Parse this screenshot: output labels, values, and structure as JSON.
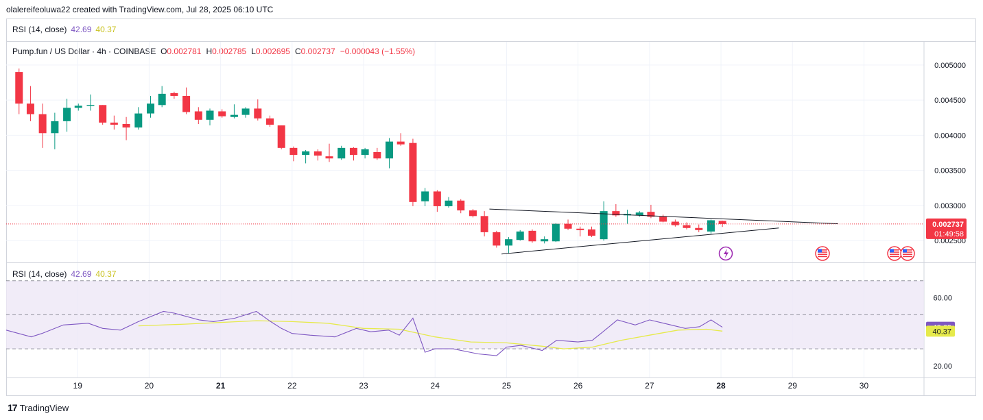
{
  "caption": "olalereifeoluwa22 created with TradingView.com, Jul 28, 2025 06:10 UTC",
  "top_legend": {
    "name": "RSI (14, close)",
    "v1": "42.69",
    "v2": "40.37"
  },
  "symbol_line": {
    "title": "Pump.fun / US Dollar · 4h · COINBASE",
    "o_label": "O",
    "o": "0.002781",
    "h_label": "H",
    "h": "0.002785",
    "l_label": "L",
    "l": "0.002695",
    "c_label": "C",
    "c": "0.002737",
    "change": "−0.000043 (−1.55%)"
  },
  "rsi_legend": {
    "name": "RSI (14, close)",
    "v1": "42.69",
    "v2": "40.37"
  },
  "price_axis": {
    "ticks": [
      "0.005000",
      "0.004500",
      "0.004000",
      "0.003500",
      "0.003000",
      "0.002500"
    ],
    "last_price": "0.002737",
    "countdown": "01:49:58"
  },
  "rsi_axis": {
    "ticks": [
      "60.00",
      "20.00"
    ],
    "rsi_value": "42.69",
    "ma_value": "40.37"
  },
  "time_axis": [
    "19",
    "20",
    "21",
    "22",
    "23",
    "24",
    "25",
    "26",
    "27",
    "28",
    "29",
    "30"
  ],
  "brand": "TradingView",
  "colors": {
    "up": "#089981",
    "down": "#f23645",
    "rsi": "#7e57c2",
    "rsi_ma": "#e6ea4b",
    "band": "#ede7f6"
  },
  "icons": [
    "lightning-event-icon",
    "us-flag-event-icon",
    "us-flag-event-icon",
    "us-flag-event-icon"
  ],
  "chart_data": [
    {
      "type": "candlestick",
      "x_unit": "day (Jul 2025)",
      "timeframe": "4h",
      "candles": [
        {
          "x": 18.18,
          "o": 0.0049,
          "h": 0.00495,
          "l": 0.0043,
          "c": 0.00445
        },
        {
          "x": 18.34,
          "o": 0.00445,
          "h": 0.0047,
          "l": 0.0042,
          "c": 0.0043
        },
        {
          "x": 18.51,
          "o": 0.0043,
          "h": 0.00445,
          "l": 0.00382,
          "c": 0.00403
        },
        {
          "x": 18.68,
          "o": 0.00403,
          "h": 0.00432,
          "l": 0.0038,
          "c": 0.0042
        },
        {
          "x": 18.85,
          "o": 0.0042,
          "h": 0.00452,
          "l": 0.00405,
          "c": 0.00439
        },
        {
          "x": 19.01,
          "o": 0.00439,
          "h": 0.00445,
          "l": 0.00435,
          "c": 0.00442
        },
        {
          "x": 19.18,
          "o": 0.00442,
          "h": 0.00458,
          "l": 0.00435,
          "c": 0.00443
        },
        {
          "x": 19.35,
          "o": 0.00443,
          "h": 0.00443,
          "l": 0.00415,
          "c": 0.00418
        },
        {
          "x": 19.51,
          "o": 0.00418,
          "h": 0.00428,
          "l": 0.00408,
          "c": 0.00415
        },
        {
          "x": 19.68,
          "o": 0.00416,
          "h": 0.00426,
          "l": 0.00393,
          "c": 0.00411
        },
        {
          "x": 19.85,
          "o": 0.00411,
          "h": 0.0044,
          "l": 0.00408,
          "c": 0.00431
        },
        {
          "x": 20.02,
          "o": 0.00431,
          "h": 0.00456,
          "l": 0.00425,
          "c": 0.00445
        },
        {
          "x": 20.18,
          "o": 0.00443,
          "h": 0.0047,
          "l": 0.0044,
          "c": 0.00459
        },
        {
          "x": 20.35,
          "o": 0.0046,
          "h": 0.00462,
          "l": 0.00452,
          "c": 0.00456
        },
        {
          "x": 20.52,
          "o": 0.00456,
          "h": 0.00468,
          "l": 0.0043,
          "c": 0.00433
        },
        {
          "x": 20.69,
          "o": 0.00434,
          "h": 0.0044,
          "l": 0.00416,
          "c": 0.00422
        },
        {
          "x": 20.85,
          "o": 0.00422,
          "h": 0.00438,
          "l": 0.00414,
          "c": 0.00435
        },
        {
          "x": 21.02,
          "o": 0.00434,
          "h": 0.00437,
          "l": 0.00425,
          "c": 0.00427
        },
        {
          "x": 21.19,
          "o": 0.00426,
          "h": 0.00444,
          "l": 0.00424,
          "c": 0.00429
        },
        {
          "x": 21.35,
          "o": 0.00429,
          "h": 0.0044,
          "l": 0.00425,
          "c": 0.00438
        },
        {
          "x": 21.52,
          "o": 0.00438,
          "h": 0.00451,
          "l": 0.00421,
          "c": 0.00424
        },
        {
          "x": 21.69,
          "o": 0.00424,
          "h": 0.00428,
          "l": 0.00412,
          "c": 0.00415
        },
        {
          "x": 21.85,
          "o": 0.00414,
          "h": 0.00414,
          "l": 0.0038,
          "c": 0.00382
        },
        {
          "x": 22.02,
          "o": 0.00382,
          "h": 0.00384,
          "l": 0.00363,
          "c": 0.00372
        },
        {
          "x": 22.19,
          "o": 0.00372,
          "h": 0.00379,
          "l": 0.0036,
          "c": 0.00377
        },
        {
          "x": 22.36,
          "o": 0.00377,
          "h": 0.0038,
          "l": 0.00364,
          "c": 0.00371
        },
        {
          "x": 22.52,
          "o": 0.0037,
          "h": 0.00388,
          "l": 0.00362,
          "c": 0.00367
        },
        {
          "x": 22.69,
          "o": 0.00367,
          "h": 0.00385,
          "l": 0.00365,
          "c": 0.00382
        },
        {
          "x": 22.86,
          "o": 0.00382,
          "h": 0.00383,
          "l": 0.00364,
          "c": 0.00372
        },
        {
          "x": 23.02,
          "o": 0.00372,
          "h": 0.00382,
          "l": 0.00367,
          "c": 0.0038
        },
        {
          "x": 23.19,
          "o": 0.00376,
          "h": 0.00382,
          "l": 0.00365,
          "c": 0.00367
        },
        {
          "x": 23.36,
          "o": 0.00367,
          "h": 0.00396,
          "l": 0.00353,
          "c": 0.00391
        },
        {
          "x": 23.52,
          "o": 0.00391,
          "h": 0.00403,
          "l": 0.00385,
          "c": 0.00387
        },
        {
          "x": 23.69,
          "o": 0.00389,
          "h": 0.00395,
          "l": 0.00299,
          "c": 0.00305
        },
        {
          "x": 23.86,
          "o": 0.00306,
          "h": 0.00325,
          "l": 0.00299,
          "c": 0.0032
        },
        {
          "x": 24.03,
          "o": 0.0032,
          "h": 0.00322,
          "l": 0.00291,
          "c": 0.00299
        },
        {
          "x": 24.19,
          "o": 0.00299,
          "h": 0.00312,
          "l": 0.00297,
          "c": 0.00307
        },
        {
          "x": 24.36,
          "o": 0.00307,
          "h": 0.00309,
          "l": 0.00289,
          "c": 0.00293
        },
        {
          "x": 24.53,
          "o": 0.00293,
          "h": 0.00295,
          "l": 0.00283,
          "c": 0.00285
        },
        {
          "x": 24.69,
          "o": 0.00285,
          "h": 0.00292,
          "l": 0.00256,
          "c": 0.00262
        },
        {
          "x": 24.86,
          "o": 0.00262,
          "h": 0.00264,
          "l": 0.0024,
          "c": 0.00243
        },
        {
          "x": 25.03,
          "o": 0.00243,
          "h": 0.00255,
          "l": 0.00232,
          "c": 0.00252
        },
        {
          "x": 25.19,
          "o": 0.00251,
          "h": 0.00265,
          "l": 0.0025,
          "c": 0.00263
        },
        {
          "x": 25.36,
          "o": 0.00264,
          "h": 0.00266,
          "l": 0.00247,
          "c": 0.00249
        },
        {
          "x": 25.53,
          "o": 0.00249,
          "h": 0.00256,
          "l": 0.00246,
          "c": 0.00252
        },
        {
          "x": 25.69,
          "o": 0.00249,
          "h": 0.00275,
          "l": 0.00248,
          "c": 0.00274
        },
        {
          "x": 25.86,
          "o": 0.00274,
          "h": 0.0028,
          "l": 0.00265,
          "c": 0.00267
        },
        {
          "x": 26.03,
          "o": 0.00267,
          "h": 0.0027,
          "l": 0.00256,
          "c": 0.00265
        },
        {
          "x": 26.19,
          "o": 0.00266,
          "h": 0.0027,
          "l": 0.00255,
          "c": 0.00257
        },
        {
          "x": 26.36,
          "o": 0.00252,
          "h": 0.00306,
          "l": 0.0025,
          "c": 0.00292
        },
        {
          "x": 26.53,
          "o": 0.00292,
          "h": 0.00302,
          "l": 0.00284,
          "c": 0.00286
        },
        {
          "x": 26.69,
          "o": 0.00286,
          "h": 0.00294,
          "l": 0.00274,
          "c": 0.00288
        },
        {
          "x": 26.86,
          "o": 0.00286,
          "h": 0.00292,
          "l": 0.00284,
          "c": 0.0029
        },
        {
          "x": 27.02,
          "o": 0.00291,
          "h": 0.00301,
          "l": 0.00282,
          "c": 0.00284
        },
        {
          "x": 27.19,
          "o": 0.00284,
          "h": 0.00287,
          "l": 0.00276,
          "c": 0.00277
        },
        {
          "x": 27.36,
          "o": 0.00277,
          "h": 0.0028,
          "l": 0.0027,
          "c": 0.00272
        },
        {
          "x": 27.52,
          "o": 0.00272,
          "h": 0.00276,
          "l": 0.00266,
          "c": 0.00268
        },
        {
          "x": 27.69,
          "o": 0.00268,
          "h": 0.00273,
          "l": 0.00262,
          "c": 0.00265
        },
        {
          "x": 27.86,
          "o": 0.00263,
          "h": 0.0028,
          "l": 0.0026,
          "c": 0.00279
        },
        {
          "x": 28.02,
          "o": 0.002781,
          "h": 0.002785,
          "l": 0.002695,
          "c": 0.002737
        }
      ],
      "trendlines": [
        {
          "from": [
            24.76,
            0.00295
          ],
          "to": [
            29.64,
            0.00274
          ]
        },
        {
          "from": [
            24.93,
            0.00231
          ],
          "to": [
            28.81,
            0.00268
          ]
        }
      ],
      "last_price": 0.002737,
      "ylim": [
        0.00219,
        0.00533
      ],
      "xlim": [
        18.0,
        30.84
      ]
    },
    {
      "type": "line",
      "name": "RSI (14, close)",
      "series": [
        {
          "name": "RSI",
          "x": [
            18.0,
            18.35,
            18.5,
            18.8,
            19.15,
            19.35,
            19.6,
            19.85,
            20.2,
            20.35,
            20.7,
            20.9,
            21.2,
            21.5,
            21.7,
            21.85,
            22.0,
            22.25,
            22.6,
            22.9,
            23.1,
            23.35,
            23.5,
            23.69,
            23.86,
            24.0,
            24.25,
            24.6,
            24.86,
            25.0,
            25.2,
            25.5,
            25.7,
            26.0,
            26.2,
            26.35,
            26.55,
            26.8,
            27.0,
            27.2,
            27.5,
            27.7,
            27.86,
            28.02
          ],
          "values": [
            41,
            37,
            39,
            44,
            45,
            42,
            41,
            46,
            52,
            51,
            47,
            46,
            48,
            52,
            46,
            42,
            39,
            38,
            37,
            42,
            40,
            41,
            38,
            48,
            28,
            30,
            30,
            27,
            26,
            31,
            32,
            29,
            35,
            34,
            35,
            40,
            47,
            44,
            47,
            45,
            42,
            43,
            47,
            42.69
          ]
        },
        {
          "name": "RSI MA",
          "x": [
            19.85,
            20.5,
            21.0,
            21.5,
            22.0,
            22.5,
            23.0,
            23.5,
            24.0,
            24.5,
            25.0,
            25.5,
            25.8,
            26.2,
            26.6,
            27.0,
            27.4,
            27.8,
            28.02
          ],
          "values": [
            43.5,
            44.5,
            45.5,
            46.5,
            46,
            45,
            42,
            41.5,
            37,
            34,
            33.5,
            31.5,
            30,
            31,
            35,
            38,
            41,
            41.5,
            40.37
          ]
        }
      ],
      "bands": [
        30,
        50,
        70
      ],
      "ylim": [
        13.1,
        80.4
      ],
      "ytick_values": [
        60,
        20
      ]
    }
  ]
}
